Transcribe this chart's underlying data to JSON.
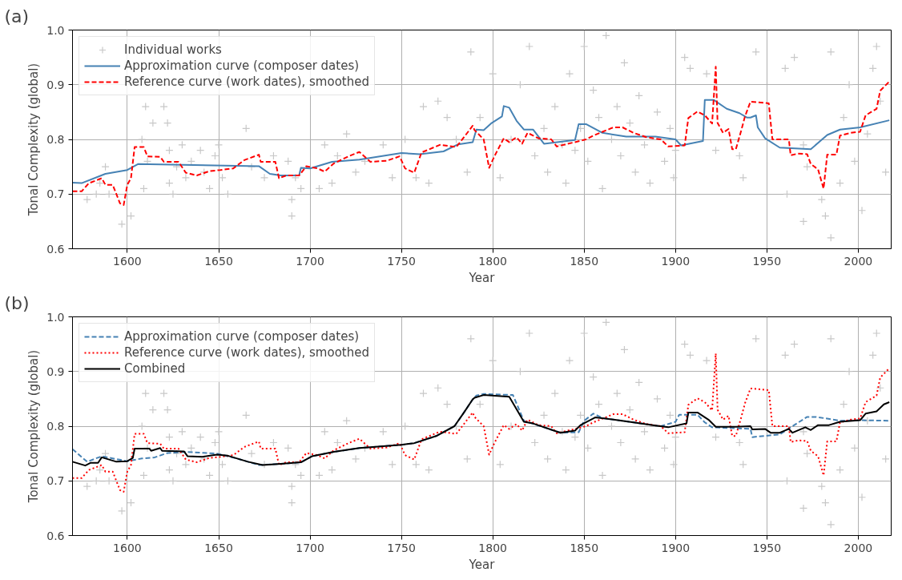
{
  "chart_data": [
    {
      "type": "line",
      "annotations": [
        "(a)"
      ],
      "xlabel": "Year",
      "ylabel": "Tonal Complexity (global)",
      "xlim": [
        1570,
        2018
      ],
      "ylim": [
        0.6,
        1.0
      ],
      "xticks": [
        1600,
        1650,
        1700,
        1750,
        1800,
        1850,
        1900,
        1950,
        2000
      ],
      "yticks": [
        0.6,
        0.7,
        0.8,
        0.9,
        {
          "value": 1.0,
          "label": "1.0"
        }
      ],
      "grid": true,
      "legend": "top left",
      "series": [
        {
          "name": "Individual works",
          "type": "scatter",
          "marker": "cross",
          "color": "#c8c8c8",
          "x": [
            1578,
            1583,
            1585,
            1588,
            1590,
            1597,
            1602,
            1608,
            1609,
            1610,
            1611,
            1614,
            1620,
            1622,
            1623,
            1623,
            1625,
            1627,
            1630,
            1632,
            1635,
            1640,
            1642,
            1645,
            1648,
            1650,
            1652,
            1655,
            1665,
            1668,
            1675,
            1680,
            1688,
            1690,
            1690,
            1692,
            1695,
            1705,
            1708,
            1712,
            1715,
            1720,
            1725,
            1730,
            1740,
            1745,
            1752,
            1758,
            1762,
            1765,
            1770,
            1775,
            1780,
            1786,
            1788,
            1793,
            1800,
            1804,
            1810,
            1815,
            1820,
            1823,
            1828,
            1830,
            1834,
            1838,
            1840,
            1842,
            1845,
            1848,
            1850,
            1852,
            1855,
            1858,
            1860,
            1862,
            1865,
            1868,
            1870,
            1872,
            1875,
            1878,
            1880,
            1883,
            1886,
            1890,
            1894,
            1897,
            1899,
            1900,
            1905,
            1908,
            1917,
            1922,
            1935,
            1937,
            1944,
            1960,
            1961,
            1965,
            1970,
            1970,
            1972,
            1980,
            1982,
            1985,
            1985,
            1990,
            1992,
            1995,
            1998,
            2002,
            2005,
            2008,
            2010,
            2012,
            2015
          ],
          "values": [
            0.69,
            0.7,
            0.72,
            0.75,
            0.7,
            0.645,
            0.66,
            0.8,
            0.71,
            0.86,
            0.76,
            0.83,
            0.86,
            0.83,
            0.78,
            0.72,
            0.7,
            0.75,
            0.79,
            0.73,
            0.76,
            0.78,
            0.74,
            0.71,
            0.77,
            0.79,
            0.73,
            0.7,
            0.82,
            0.75,
            0.73,
            0.77,
            0.76,
            0.66,
            0.69,
            0.73,
            0.71,
            0.71,
            0.79,
            0.72,
            0.77,
            0.81,
            0.74,
            0.76,
            0.79,
            0.73,
            0.8,
            0.73,
            0.86,
            0.72,
            0.87,
            0.84,
            0.8,
            0.74,
            0.96,
            0.84,
            0.92,
            0.73,
            0.8,
            0.9,
            0.97,
            0.77,
            0.82,
            0.74,
            0.86,
            0.79,
            0.72,
            0.92,
            0.78,
            0.82,
            0.97,
            0.76,
            0.89,
            0.84,
            0.71,
            0.99,
            0.8,
            0.86,
            0.77,
            0.94,
            0.83,
            0.74,
            0.88,
            0.79,
            0.72,
            0.85,
            0.76,
            0.82,
            0.73,
            0.78,
            0.95,
            0.93,
            0.92,
            0.78,
            0.77,
            0.73,
            0.96,
            0.93,
            0.7,
            0.95,
            0.65,
            0.79,
            0.75,
            0.69,
            0.66,
            0.96,
            0.62,
            0.72,
            0.84,
            0.9,
            0.76,
            0.67,
            0.81,
            0.93,
            0.97,
            0.87,
            0.74
          ]
        },
        {
          "name": "Approximation curve (composer dates)",
          "line_style": "solid",
          "color": "#4682b4",
          "x": [
            1570,
            1575,
            1588,
            1600,
            1606,
            1672,
            1678,
            1684,
            1694,
            1695,
            1700,
            1712,
            1727,
            1750,
            1760,
            1773,
            1781,
            1789,
            1791,
            1795,
            1799,
            1805,
            1806,
            1809,
            1813,
            1817,
            1822,
            1828,
            1845,
            1847,
            1851,
            1860,
            1873,
            1889,
            1900,
            1903,
            1915,
            1916,
            1921,
            1928,
            1935,
            1939,
            1941,
            1944,
            1945,
            1949,
            1957,
            1974,
            1983,
            1990,
            2001,
            2017
          ],
          "values": [
            0.721,
            0.72,
            0.737,
            0.744,
            0.755,
            0.751,
            0.737,
            0.734,
            0.734,
            0.748,
            0.747,
            0.759,
            0.763,
            0.775,
            0.773,
            0.778,
            0.791,
            0.795,
            0.818,
            0.817,
            0.829,
            0.842,
            0.861,
            0.858,
            0.834,
            0.818,
            0.818,
            0.792,
            0.799,
            0.828,
            0.828,
            0.812,
            0.805,
            0.805,
            0.8,
            0.789,
            0.797,
            0.872,
            0.872,
            0.856,
            0.848,
            0.84,
            0.84,
            0.844,
            0.822,
            0.802,
            0.785,
            0.782,
            0.808,
            0.818,
            0.822,
            0.835
          ]
        },
        {
          "name": "Reference curve (work dates), smoothed",
          "line_style": "dashed",
          "color": "#ff0000",
          "x": [
            1570,
            1575,
            1579,
            1583,
            1586,
            1588,
            1592,
            1596,
            1598,
            1600,
            1602,
            1604,
            1609,
            1611,
            1618,
            1620,
            1628,
            1632,
            1638,
            1645,
            1651,
            1658,
            1664,
            1672,
            1673,
            1681,
            1683,
            1687,
            1694,
            1698,
            1704,
            1708,
            1713,
            1721,
            1727,
            1733,
            1742,
            1749,
            1752,
            1757,
            1761,
            1771,
            1780,
            1784,
            1789,
            1790,
            1795,
            1798,
            1801,
            1806,
            1809,
            1813,
            1816,
            1819,
            1825,
            1832,
            1835,
            1841,
            1845,
            1851,
            1855,
            1866,
            1871,
            1877,
            1884,
            1892,
            1896,
            1905,
            1907,
            1912,
            1916,
            1920,
            1922,
            1923,
            1926,
            1929,
            1931,
            1933,
            1936,
            1938,
            1941,
            1951,
            1953,
            1962,
            1963,
            1967,
            1972,
            1974,
            1978,
            1981,
            1983,
            1988,
            1990,
            1996,
            2001,
            2004,
            2010,
            2012,
            2017
          ],
          "values": [
            0.705,
            0.705,
            0.72,
            0.725,
            0.729,
            0.717,
            0.717,
            0.683,
            0.68,
            0.717,
            0.729,
            0.786,
            0.786,
            0.769,
            0.768,
            0.759,
            0.759,
            0.739,
            0.734,
            0.742,
            0.744,
            0.747,
            0.762,
            0.772,
            0.759,
            0.759,
            0.729,
            0.734,
            0.734,
            0.751,
            0.747,
            0.741,
            0.756,
            0.769,
            0.777,
            0.759,
            0.761,
            0.769,
            0.747,
            0.739,
            0.776,
            0.79,
            0.786,
            0.803,
            0.825,
            0.817,
            0.8,
            0.748,
            0.77,
            0.802,
            0.795,
            0.804,
            0.792,
            0.812,
            0.802,
            0.8,
            0.787,
            0.792,
            0.795,
            0.8,
            0.807,
            0.822,
            0.822,
            0.812,
            0.804,
            0.8,
            0.787,
            0.789,
            0.839,
            0.851,
            0.844,
            0.829,
            0.933,
            0.83,
            0.812,
            0.819,
            0.782,
            0.782,
            0.817,
            0.842,
            0.869,
            0.866,
            0.8,
            0.8,
            0.771,
            0.774,
            0.773,
            0.755,
            0.745,
            0.71,
            0.772,
            0.772,
            0.807,
            0.812,
            0.814,
            0.844,
            0.856,
            0.889,
            0.906
          ]
        }
      ]
    },
    {
      "type": "line",
      "annotations": [
        "(b)"
      ],
      "xlabel": "Year",
      "ylabel": "Tonal Complexity (global)",
      "xlim": [
        1570,
        2018
      ],
      "ylim": [
        0.6,
        1.0
      ],
      "xticks": [
        1600,
        1650,
        1700,
        1750,
        1800,
        1850,
        1900,
        1950,
        2000
      ],
      "yticks": [
        0.6,
        0.7,
        0.8,
        0.9,
        {
          "value": 1.0,
          "label": "1.0"
        }
      ],
      "grid": true,
      "legend": "top left",
      "series": [
        {
          "type": "scatter",
          "marker": "cross",
          "color": "#c8c8c8",
          "x": [
            1578,
            1583,
            1585,
            1588,
            1590,
            1597,
            1602,
            1608,
            1609,
            1610,
            1611,
            1614,
            1620,
            1622,
            1623,
            1623,
            1625,
            1627,
            1630,
            1632,
            1635,
            1640,
            1642,
            1645,
            1648,
            1650,
            1652,
            1655,
            1665,
            1668,
            1675,
            1680,
            1688,
            1690,
            1690,
            1692,
            1695,
            1705,
            1708,
            1712,
            1715,
            1720,
            1725,
            1730,
            1740,
            1745,
            1752,
            1758,
            1762,
            1765,
            1770,
            1775,
            1780,
            1786,
            1788,
            1793,
            1800,
            1804,
            1810,
            1815,
            1820,
            1823,
            1828,
            1830,
            1834,
            1838,
            1840,
            1842,
            1845,
            1848,
            1850,
            1852,
            1855,
            1858,
            1860,
            1862,
            1865,
            1868,
            1870,
            1872,
            1875,
            1878,
            1880,
            1883,
            1886,
            1890,
            1894,
            1897,
            1899,
            1900,
            1905,
            1908,
            1917,
            1922,
            1935,
            1937,
            1944,
            1960,
            1961,
            1965,
            1970,
            1970,
            1972,
            1980,
            1982,
            1985,
            1985,
            1990,
            1992,
            1995,
            1998,
            2002,
            2005,
            2008,
            2010,
            2012,
            2015
          ],
          "values": [
            0.69,
            0.7,
            0.72,
            0.75,
            0.7,
            0.645,
            0.66,
            0.8,
            0.71,
            0.86,
            0.76,
            0.83,
            0.86,
            0.83,
            0.78,
            0.72,
            0.7,
            0.75,
            0.79,
            0.73,
            0.76,
            0.78,
            0.74,
            0.71,
            0.77,
            0.79,
            0.73,
            0.7,
            0.82,
            0.75,
            0.73,
            0.77,
            0.76,
            0.66,
            0.69,
            0.73,
            0.71,
            0.71,
            0.79,
            0.72,
            0.77,
            0.81,
            0.74,
            0.76,
            0.79,
            0.73,
            0.8,
            0.73,
            0.86,
            0.72,
            0.87,
            0.84,
            0.8,
            0.74,
            0.96,
            0.84,
            0.92,
            0.73,
            0.8,
            0.9,
            0.97,
            0.77,
            0.82,
            0.74,
            0.86,
            0.79,
            0.72,
            0.92,
            0.78,
            0.82,
            0.97,
            0.76,
            0.89,
            0.84,
            0.71,
            0.99,
            0.8,
            0.86,
            0.77,
            0.94,
            0.83,
            0.74,
            0.88,
            0.79,
            0.72,
            0.85,
            0.76,
            0.82,
            0.73,
            0.78,
            0.95,
            0.93,
            0.92,
            0.78,
            0.77,
            0.73,
            0.96,
            0.93,
            0.7,
            0.95,
            0.65,
            0.79,
            0.75,
            0.69,
            0.66,
            0.96,
            0.62,
            0.72,
            0.84,
            0.9,
            0.76,
            0.67,
            0.81,
            0.93,
            0.97,
            0.87,
            0.74
          ]
        },
        {
          "name": "Approximation curve (composer dates)",
          "line_style": "dashed",
          "color": "#4682b4",
          "x": [
            1570,
            1578,
            1586,
            1600,
            1608,
            1615,
            1622,
            1632,
            1649,
            1661,
            1672,
            1684,
            1695,
            1701,
            1713,
            1727,
            1750,
            1757,
            1769,
            1779,
            1784,
            1789,
            1791,
            1795,
            1811,
            1817,
            1837,
            1847,
            1850,
            1855,
            1860,
            1877,
            1892,
            1900,
            1902,
            1912,
            1916,
            1920,
            1941,
            1942,
            1957,
            1964,
            1972,
            1977,
            1990,
            2000,
            2017
          ],
          "values": [
            0.758,
            0.735,
            0.745,
            0.736,
            0.741,
            0.743,
            0.751,
            0.753,
            0.75,
            0.74,
            0.729,
            0.731,
            0.734,
            0.745,
            0.753,
            0.76,
            0.766,
            0.769,
            0.782,
            0.8,
            0.824,
            0.849,
            0.856,
            0.859,
            0.857,
            0.81,
            0.788,
            0.789,
            0.81,
            0.823,
            0.815,
            0.807,
            0.8,
            0.808,
            0.821,
            0.821,
            0.807,
            0.798,
            0.795,
            0.78,
            0.785,
            0.8,
            0.817,
            0.817,
            0.81,
            0.811,
            0.81
          ]
        },
        {
          "name": "Reference curve (work dates), smoothed",
          "line_style": "dotted",
          "color": "#ff0000",
          "x": [
            1570,
            1575,
            1579,
            1583,
            1586,
            1588,
            1592,
            1596,
            1598,
            1600,
            1602,
            1604,
            1609,
            1611,
            1618,
            1620,
            1628,
            1632,
            1638,
            1645,
            1651,
            1658,
            1664,
            1672,
            1673,
            1681,
            1683,
            1687,
            1694,
            1698,
            1704,
            1708,
            1713,
            1721,
            1727,
            1733,
            1742,
            1749,
            1752,
            1757,
            1761,
            1771,
            1780,
            1784,
            1789,
            1790,
            1795,
            1798,
            1801,
            1806,
            1809,
            1813,
            1816,
            1819,
            1825,
            1832,
            1835,
            1841,
            1845,
            1851,
            1855,
            1866,
            1871,
            1877,
            1884,
            1892,
            1896,
            1905,
            1907,
            1912,
            1916,
            1920,
            1922,
            1923,
            1926,
            1929,
            1931,
            1933,
            1936,
            1938,
            1941,
            1951,
            1953,
            1962,
            1963,
            1967,
            1972,
            1974,
            1978,
            1981,
            1983,
            1988,
            1990,
            1996,
            2001,
            2004,
            2010,
            2012,
            2017
          ],
          "values": [
            0.705,
            0.705,
            0.72,
            0.725,
            0.729,
            0.717,
            0.717,
            0.683,
            0.68,
            0.717,
            0.729,
            0.786,
            0.786,
            0.769,
            0.768,
            0.759,
            0.759,
            0.739,
            0.734,
            0.742,
            0.744,
            0.747,
            0.762,
            0.772,
            0.759,
            0.759,
            0.729,
            0.734,
            0.734,
            0.751,
            0.747,
            0.741,
            0.756,
            0.769,
            0.777,
            0.759,
            0.761,
            0.769,
            0.747,
            0.739,
            0.776,
            0.79,
            0.786,
            0.803,
            0.825,
            0.817,
            0.8,
            0.748,
            0.77,
            0.802,
            0.795,
            0.804,
            0.792,
            0.812,
            0.802,
            0.8,
            0.787,
            0.792,
            0.795,
            0.8,
            0.807,
            0.822,
            0.822,
            0.812,
            0.804,
            0.8,
            0.787,
            0.789,
            0.839,
            0.851,
            0.844,
            0.829,
            0.933,
            0.83,
            0.812,
            0.819,
            0.782,
            0.782,
            0.817,
            0.842,
            0.869,
            0.866,
            0.8,
            0.8,
            0.771,
            0.774,
            0.773,
            0.755,
            0.745,
            0.71,
            0.772,
            0.772,
            0.807,
            0.812,
            0.814,
            0.844,
            0.856,
            0.889,
            0.906
          ]
        },
        {
          "name": "Combined",
          "line_style": "solid",
          "color": "#000000",
          "x": [
            1570,
            1577,
            1580,
            1584,
            1586,
            1594,
            1600,
            1603,
            1604,
            1612,
            1613,
            1618,
            1619,
            1631,
            1633,
            1641,
            1649,
            1655,
            1666,
            1674,
            1684,
            1695,
            1701,
            1713,
            1727,
            1750,
            1757,
            1769,
            1779,
            1784,
            1789,
            1790,
            1795,
            1809,
            1817,
            1822,
            1837,
            1845,
            1848,
            1856,
            1866,
            1877,
            1889,
            1896,
            1906,
            1907,
            1912,
            1918,
            1922,
            1933,
            1941,
            1942,
            1949,
            1952,
            1957,
            1962,
            1964,
            1971,
            1974,
            1978,
            1984,
            1990,
            2001,
            2004,
            2010,
            2014,
            2017
          ],
          "values": [
            0.735,
            0.728,
            0.733,
            0.733,
            0.743,
            0.735,
            0.736,
            0.742,
            0.759,
            0.759,
            0.755,
            0.76,
            0.755,
            0.754,
            0.745,
            0.744,
            0.748,
            0.746,
            0.735,
            0.729,
            0.731,
            0.734,
            0.745,
            0.753,
            0.76,
            0.766,
            0.769,
            0.782,
            0.8,
            0.824,
            0.849,
            0.852,
            0.857,
            0.854,
            0.808,
            0.805,
            0.788,
            0.792,
            0.802,
            0.816,
            0.812,
            0.807,
            0.801,
            0.798,
            0.805,
            0.825,
            0.825,
            0.812,
            0.799,
            0.799,
            0.8,
            0.794,
            0.795,
            0.788,
            0.788,
            0.795,
            0.788,
            0.798,
            0.793,
            0.802,
            0.802,
            0.808,
            0.811,
            0.823,
            0.827,
            0.84,
            0.844
          ]
        }
      ]
    }
  ]
}
